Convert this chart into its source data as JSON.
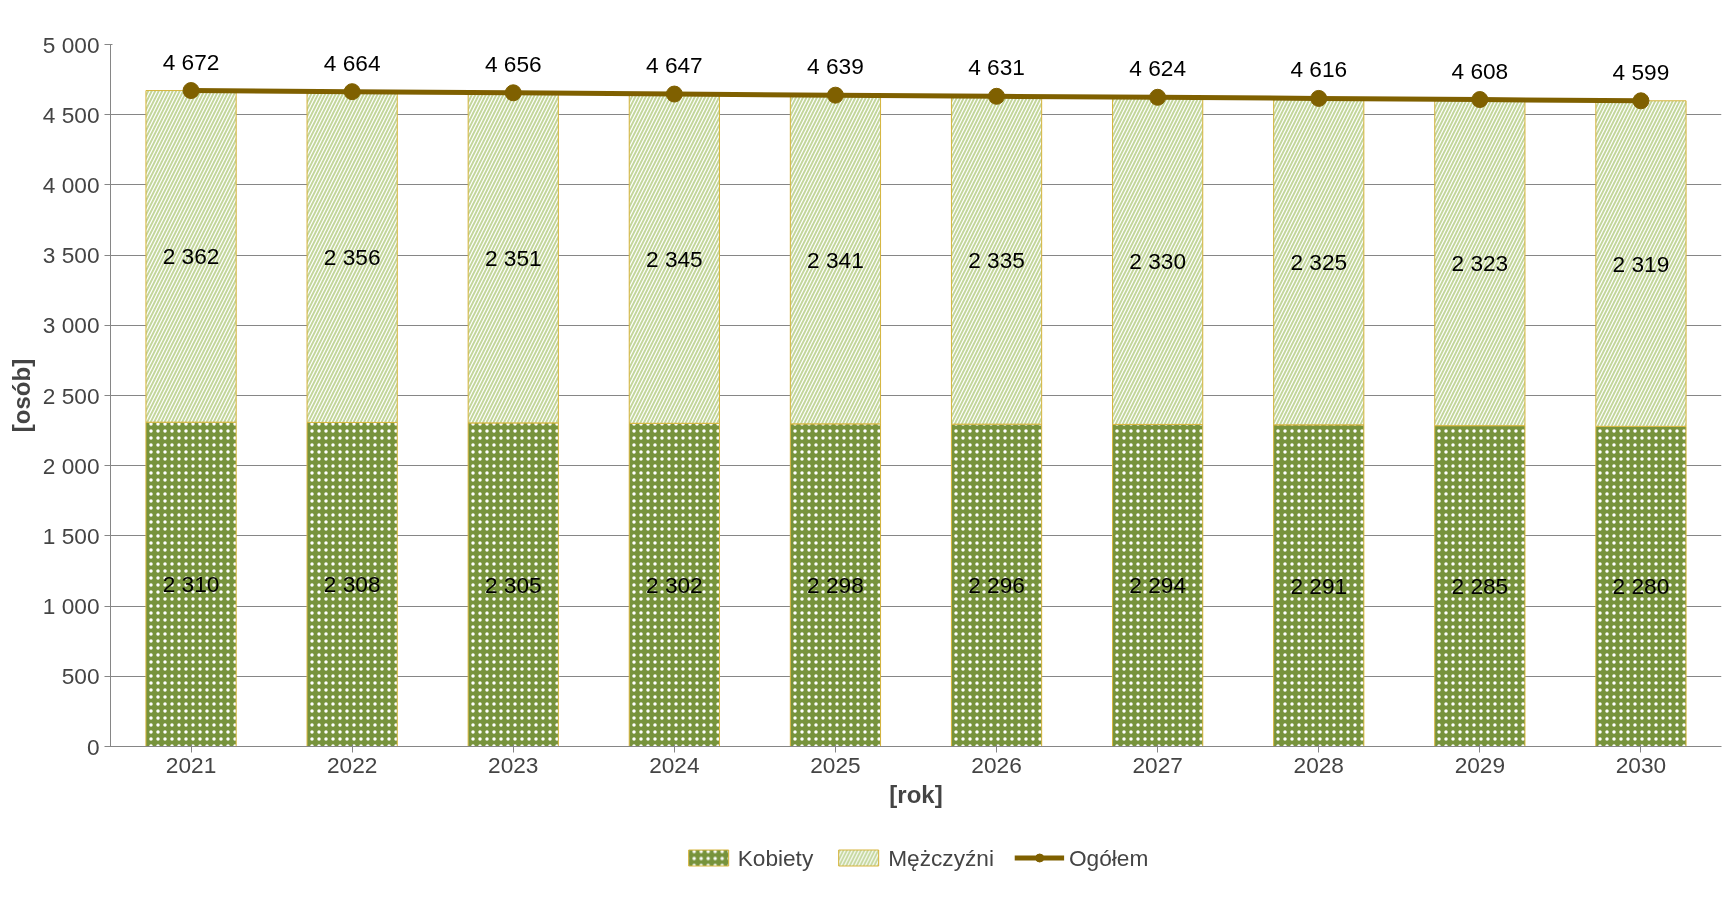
{
  "chart_data": {
    "type": "bar",
    "stacked": true,
    "xlabel": "[rok]",
    "ylabel": "[osób]",
    "categories": [
      "2021",
      "2022",
      "2023",
      "2024",
      "2025",
      "2026",
      "2027",
      "2028",
      "2029",
      "2030"
    ],
    "series": [
      {
        "name": "Kobiety",
        "color": "#77933c",
        "values": [
          2310,
          2308,
          2305,
          2302,
          2298,
          2296,
          2294,
          2291,
          2285,
          2280
        ]
      },
      {
        "name": "Mężczyźni",
        "color": "#c3d69b",
        "values": [
          2362,
          2356,
          2351,
          2345,
          2341,
          2335,
          2330,
          2325,
          2323,
          2319
        ]
      },
      {
        "name": "Ogółem",
        "type": "line",
        "color": "#7f6000",
        "values": [
          4672,
          4664,
          4656,
          4647,
          4639,
          4631,
          4624,
          4616,
          4608,
          4599
        ]
      }
    ],
    "ylim": [
      0,
      5000
    ],
    "yticks": [
      0,
      500,
      {
        "value": 1000,
        "label": "1 000"
      },
      {
        "value": 1500,
        "label": "1 500"
      },
      {
        "value": 2000,
        "label": "2 000"
      },
      {
        "value": 2500,
        "label": "2 500"
      },
      {
        "value": 3000,
        "label": "3 000"
      },
      {
        "value": 3500,
        "label": "3 500"
      },
      {
        "value": 4000,
        "label": "4 000"
      },
      {
        "value": 4500,
        "label": "4 500"
      },
      {
        "value": 5000,
        "label": "5 000"
      }
    ],
    "grid": "y",
    "legend": "bottom",
    "marker": "circle",
    "line_style": "solid",
    "data_labels": true
  }
}
